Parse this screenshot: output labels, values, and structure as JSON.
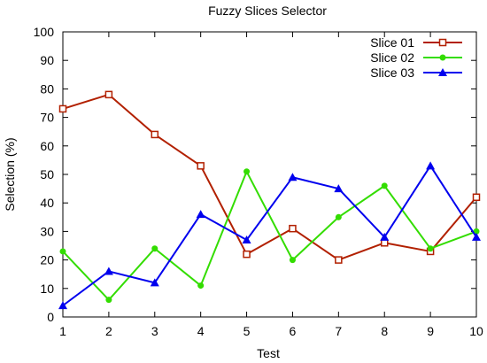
{
  "chart_data": {
    "type": "line",
    "title": "Fuzzy Slices Selector",
    "xlabel": "Test",
    "ylabel": "Selection (%)",
    "x": [
      1,
      2,
      3,
      4,
      5,
      6,
      7,
      8,
      9,
      10
    ],
    "xlim": [
      1,
      10
    ],
    "ylim": [
      0,
      100
    ],
    "x_ticks": [
      1,
      2,
      3,
      4,
      5,
      6,
      7,
      8,
      9,
      10
    ],
    "y_ticks": [
      0,
      10,
      20,
      30,
      40,
      50,
      60,
      70,
      80,
      90,
      100
    ],
    "grid": false,
    "legend_position": "top-right",
    "series": [
      {
        "name": "Slice 01",
        "color": "#b22000",
        "marker": "hollow-square",
        "values": [
          73,
          78,
          64,
          53,
          22,
          31,
          20,
          26,
          23,
          42
        ]
      },
      {
        "name": "Slice 02",
        "color": "#33dd00",
        "marker": "filled-circle",
        "values": [
          23,
          6,
          24,
          11,
          51,
          20,
          35,
          46,
          24,
          30
        ]
      },
      {
        "name": "Slice 03",
        "color": "#0000ee",
        "marker": "filled-triangle",
        "values": [
          4,
          16,
          12,
          36,
          27,
          49,
          45,
          28,
          53,
          28
        ]
      }
    ]
  }
}
